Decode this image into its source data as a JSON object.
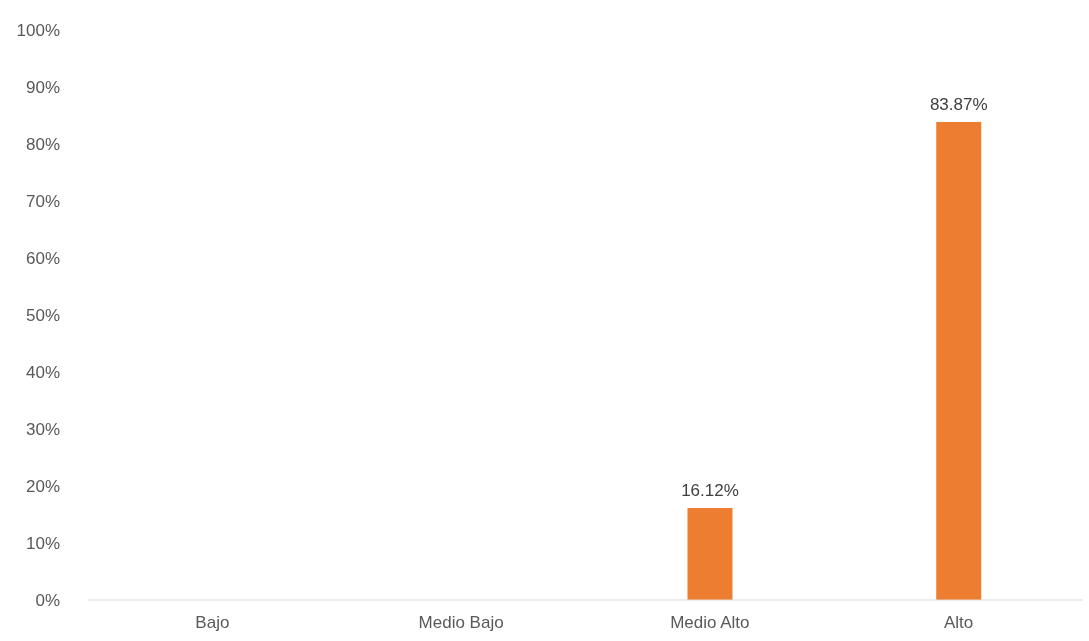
{
  "chart_data": {
    "type": "bar",
    "categories": [
      "Bajo",
      "Medio Bajo",
      "Medio Alto",
      "Alto"
    ],
    "values": [
      0,
      0,
      16.12,
      83.87
    ],
    "value_labels": [
      null,
      null,
      "16.12%",
      "83.87%"
    ],
    "color": "#ed7d31",
    "ylim": [
      0,
      100
    ],
    "yticks": [
      {
        "value": 0,
        "label": "0%"
      },
      {
        "value": 10,
        "label": "10%"
      },
      {
        "value": 20,
        "label": "20%"
      },
      {
        "value": 30,
        "label": "30%"
      },
      {
        "value": 40,
        "label": "40%"
      },
      {
        "value": 50,
        "label": "50%"
      },
      {
        "value": 60,
        "label": "60%"
      },
      {
        "value": 70,
        "label": "70%"
      },
      {
        "value": 80,
        "label": "80%"
      },
      {
        "value": 90,
        "label": "90%"
      },
      {
        "value": 100,
        "label": "100%"
      }
    ],
    "grid": false,
    "legend": false
  }
}
